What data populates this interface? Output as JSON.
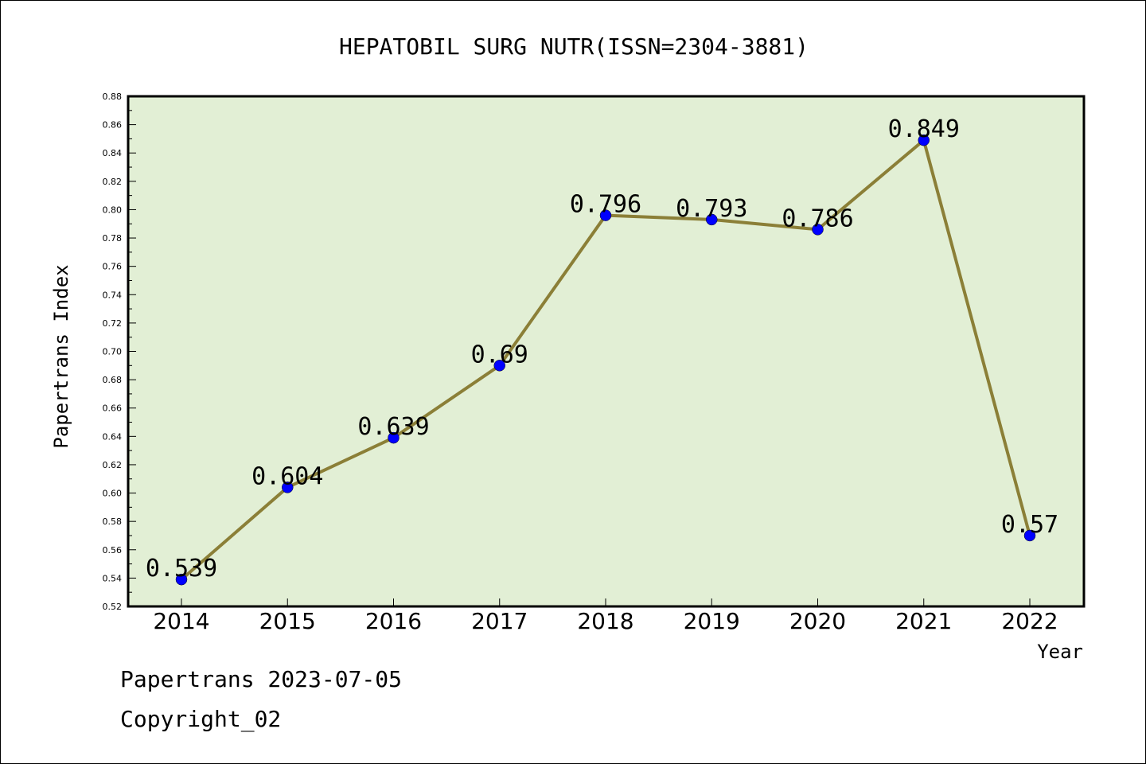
{
  "chart_data": {
    "type": "line",
    "title": "HEPATOBIL SURG NUTR(ISSN=2304-3881)",
    "xlabel": "Year",
    "ylabel": "Papertrans Index",
    "categories": [
      "2014",
      "2015",
      "2016",
      "2017",
      "2018",
      "2019",
      "2020",
      "2021",
      "2022"
    ],
    "values": [
      0.539,
      0.604,
      0.639,
      0.69,
      0.796,
      0.793,
      0.786,
      0.849,
      0.57
    ],
    "data_labels": [
      "0.539",
      "0.604",
      "0.639",
      "0.69",
      "0.796",
      "0.793",
      "0.786",
      "0.849",
      "0.57"
    ],
    "ylim": [
      0.52,
      0.88
    ],
    "yticks": [
      "0.52",
      "0.54",
      "0.56",
      "0.58",
      "0.60",
      "0.62",
      "0.64",
      "0.66",
      "0.68",
      "0.70",
      "0.72",
      "0.74",
      "0.76",
      "0.78",
      "0.80",
      "0.82",
      "0.84",
      "0.86",
      "0.88"
    ],
    "grid": false,
    "colors": {
      "plot_background": "#e2efd5",
      "line": "#8b7f37",
      "marker": "#0000ff",
      "axis": "#000000"
    }
  },
  "footer": {
    "line1": "Papertrans 2023-07-05",
    "line2": "Copyright_02"
  }
}
